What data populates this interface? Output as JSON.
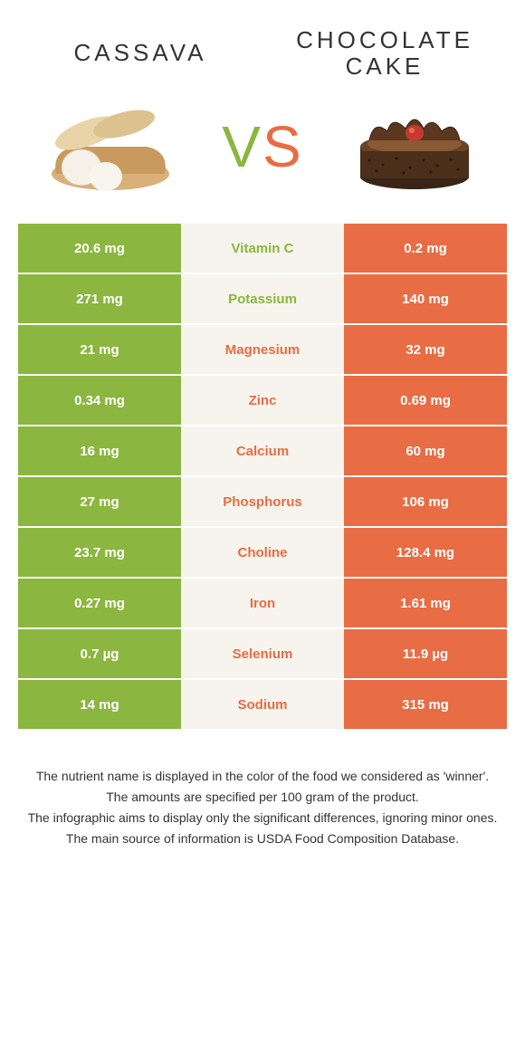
{
  "header": {
    "left_title": "CASSAVA",
    "right_title": "CHOCOLATE CAKE",
    "vs_v": "V",
    "vs_s": "S"
  },
  "colors": {
    "left_bg": "#8bb63f",
    "right_bg": "#e86c44",
    "mid_bg": "#f6f4ed",
    "left_text": "#8bb63f",
    "right_text": "#e86c44"
  },
  "rows": [
    {
      "nutrient": "Vitamin C",
      "left": "20.6 mg",
      "right": "0.2 mg",
      "winner": "left"
    },
    {
      "nutrient": "Potassium",
      "left": "271 mg",
      "right": "140 mg",
      "winner": "left"
    },
    {
      "nutrient": "Magnesium",
      "left": "21 mg",
      "right": "32 mg",
      "winner": "right"
    },
    {
      "nutrient": "Zinc",
      "left": "0.34 mg",
      "right": "0.69 mg",
      "winner": "right"
    },
    {
      "nutrient": "Calcium",
      "left": "16 mg",
      "right": "60 mg",
      "winner": "right"
    },
    {
      "nutrient": "Phosphorus",
      "left": "27 mg",
      "right": "106 mg",
      "winner": "right"
    },
    {
      "nutrient": "Choline",
      "left": "23.7 mg",
      "right": "128.4 mg",
      "winner": "right"
    },
    {
      "nutrient": "Iron",
      "left": "0.27 mg",
      "right": "1.61 mg",
      "winner": "right"
    },
    {
      "nutrient": "Selenium",
      "left": "0.7 µg",
      "right": "11.9 µg",
      "winner": "right"
    },
    {
      "nutrient": "Sodium",
      "left": "14 mg",
      "right": "315 mg",
      "winner": "right"
    }
  ],
  "footer": {
    "line1": "The nutrient name is displayed in the color of the food we considered as 'winner'.",
    "line2": "The amounts are specified per 100 gram of the product.",
    "line3": "The infographic aims to display only the significant differences, ignoring minor ones.",
    "line4": "The main source of information is USDA Food Composition Database."
  }
}
